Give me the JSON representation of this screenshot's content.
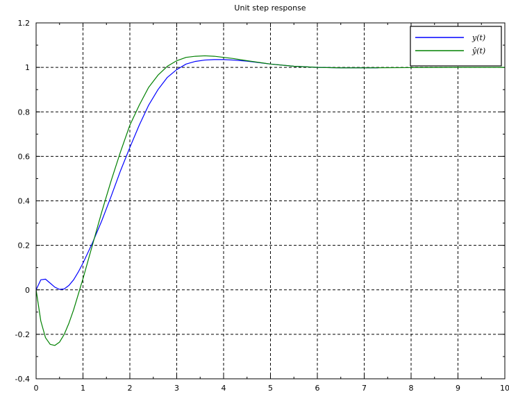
{
  "chart_data": {
    "type": "line",
    "title": "Unit step response",
    "xlabel": "",
    "ylabel": "",
    "xlim": [
      0,
      10
    ],
    "ylim": [
      -0.4,
      1.2
    ],
    "xticks": [
      "0",
      "1",
      "2",
      "3",
      "4",
      "5",
      "6",
      "7",
      "8",
      "9",
      "10"
    ],
    "yticks": [
      "-0.4",
      "-0.2",
      "0",
      "0.2",
      "0.4",
      "0.6",
      "0.8",
      "1",
      "1.2"
    ],
    "grid": true,
    "legend_position": "top-right",
    "series": [
      {
        "name": "y(t)",
        "color": "#0000ff",
        "x": [
          0,
          0.1,
          0.2,
          0.3,
          0.4,
          0.5,
          0.6,
          0.7,
          0.8,
          0.9,
          1.0,
          1.1,
          1.2,
          1.3,
          1.4,
          1.5,
          1.6,
          1.8,
          2.0,
          2.2,
          2.4,
          2.6,
          2.8,
          3.0,
          3.2,
          3.4,
          3.6,
          3.8,
          4.0,
          4.2,
          4.5,
          5.0,
          5.5,
          6.0,
          6.5,
          7.0,
          7.3
        ],
        "y": [
          0,
          0.045,
          0.048,
          0.03,
          0.012,
          0.002,
          0.004,
          0.02,
          0.045,
          0.08,
          0.12,
          0.165,
          0.21,
          0.26,
          0.31,
          0.365,
          0.42,
          0.535,
          0.64,
          0.74,
          0.83,
          0.9,
          0.955,
          0.99,
          1.015,
          1.027,
          1.033,
          1.035,
          1.035,
          1.033,
          1.028,
          1.015,
          1.005,
          1.0,
          0.998,
          0.998,
          0.998
        ]
      },
      {
        "name": "ŷ(t)",
        "color": "#008000",
        "x": [
          0,
          0.1,
          0.2,
          0.3,
          0.4,
          0.5,
          0.6,
          0.7,
          0.8,
          0.9,
          1.0,
          1.1,
          1.2,
          1.3,
          1.4,
          1.5,
          1.6,
          1.8,
          2.0,
          2.2,
          2.4,
          2.6,
          2.8,
          3.0,
          3.2,
          3.4,
          3.6,
          3.8,
          4.0,
          4.2,
          4.5,
          5.0,
          5.5,
          6.0,
          6.5,
          7.0,
          8.0,
          9.0,
          10.0
        ],
        "y": [
          0,
          -0.14,
          -0.215,
          -0.245,
          -0.25,
          -0.235,
          -0.2,
          -0.15,
          -0.09,
          -0.02,
          0.05,
          0.125,
          0.2,
          0.275,
          0.35,
          0.42,
          0.49,
          0.62,
          0.74,
          0.83,
          0.91,
          0.965,
          1.005,
          1.03,
          1.045,
          1.05,
          1.052,
          1.05,
          1.045,
          1.04,
          1.03,
          1.015,
          1.005,
          1.0,
          0.998,
          0.998,
          0.999,
          1.0,
          1.0
        ]
      }
    ]
  }
}
